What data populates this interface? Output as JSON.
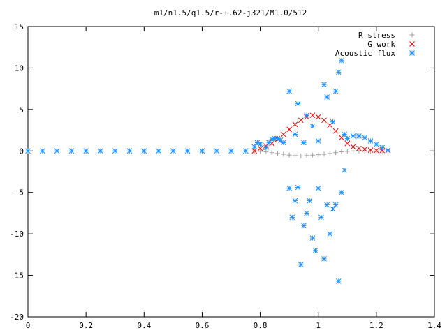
{
  "chart_data": {
    "type": "scatter",
    "title": "m1/n1.5/q1.5/r-+.62-j321/M1.0/512",
    "xlabel": "",
    "ylabel": "",
    "xlim": [
      0,
      1.4
    ],
    "ylim": [
      -20,
      15
    ],
    "x_ticks": [
      "0",
      "0.2",
      "0.4",
      "0.6",
      "0.8",
      "1",
      "1.2",
      "1.4"
    ],
    "y_ticks": [
      "15",
      "10",
      "5",
      "0",
      "-5",
      "-10",
      "-15",
      "-20"
    ],
    "grid": false,
    "legend_position": "top-right",
    "series": [
      {
        "name": "R stress",
        "marker": "plus",
        "color": "#a0a0a0",
        "points": [
          [
            0.0,
            0
          ],
          [
            0.1,
            0
          ],
          [
            0.2,
            0
          ],
          [
            0.3,
            0
          ],
          [
            0.4,
            0
          ],
          [
            0.5,
            0
          ],
          [
            0.6,
            0
          ],
          [
            0.7,
            0
          ],
          [
            0.78,
            0
          ],
          [
            0.8,
            -0.05
          ],
          [
            0.82,
            -0.1
          ],
          [
            0.84,
            -0.2
          ],
          [
            0.86,
            -0.3
          ],
          [
            0.88,
            -0.4
          ],
          [
            0.9,
            -0.5
          ],
          [
            0.92,
            -0.55
          ],
          [
            0.94,
            -0.6
          ],
          [
            0.96,
            -0.55
          ],
          [
            0.98,
            -0.5
          ],
          [
            1.0,
            -0.45
          ],
          [
            1.02,
            -0.4
          ],
          [
            1.04,
            -0.3
          ],
          [
            1.06,
            -0.2
          ],
          [
            1.08,
            -0.1
          ],
          [
            1.1,
            -0.05
          ],
          [
            1.12,
            0
          ],
          [
            1.14,
            0
          ],
          [
            1.16,
            0
          ],
          [
            1.18,
            0
          ],
          [
            1.2,
            0
          ],
          [
            1.22,
            0
          ],
          [
            1.24,
            0
          ]
        ]
      },
      {
        "name": "G work",
        "marker": "cross",
        "color": "#ff0000",
        "points": [
          [
            0.78,
            0
          ],
          [
            0.8,
            0.3
          ],
          [
            0.82,
            0.6
          ],
          [
            0.84,
            0.9
          ],
          [
            0.86,
            1.4
          ],
          [
            0.88,
            2.0
          ],
          [
            0.9,
            2.6
          ],
          [
            0.92,
            3.2
          ],
          [
            0.94,
            3.7
          ],
          [
            0.96,
            4.1
          ],
          [
            0.98,
            4.3
          ],
          [
            1.0,
            4.1
          ],
          [
            1.02,
            3.7
          ],
          [
            1.04,
            3.1
          ],
          [
            1.06,
            2.4
          ],
          [
            1.08,
            1.6
          ],
          [
            1.1,
            0.9
          ],
          [
            1.12,
            0.5
          ],
          [
            1.14,
            0.3
          ],
          [
            1.16,
            0.2
          ],
          [
            1.18,
            0.1
          ],
          [
            1.2,
            0.05
          ],
          [
            1.22,
            0.05
          ],
          [
            1.24,
            0.05
          ]
        ]
      },
      {
        "name": "Acoustic flux",
        "marker": "star",
        "color": "#1e90ff",
        "points": [
          [
            0.0,
            0
          ],
          [
            0.05,
            0
          ],
          [
            0.1,
            0
          ],
          [
            0.15,
            0
          ],
          [
            0.2,
            0
          ],
          [
            0.25,
            0
          ],
          [
            0.3,
            0
          ],
          [
            0.35,
            0
          ],
          [
            0.4,
            0
          ],
          [
            0.45,
            0
          ],
          [
            0.5,
            0
          ],
          [
            0.55,
            0
          ],
          [
            0.6,
            0
          ],
          [
            0.65,
            0
          ],
          [
            0.7,
            0
          ],
          [
            0.75,
            0
          ],
          [
            0.78,
            0.5
          ],
          [
            0.79,
            1.0
          ],
          [
            0.8,
            0.8
          ],
          [
            0.82,
            0.4
          ],
          [
            0.83,
            1.0
          ],
          [
            0.84,
            1.4
          ],
          [
            0.85,
            1.5
          ],
          [
            0.86,
            1.5
          ],
          [
            0.87,
            1.3
          ],
          [
            0.88,
            1.0
          ],
          [
            0.9,
            -4.5
          ],
          [
            0.91,
            -8.0
          ],
          [
            0.92,
            -6.0
          ],
          [
            0.93,
            -4.4
          ],
          [
            0.94,
            -13.7
          ],
          [
            0.95,
            -9.0
          ],
          [
            0.96,
            -7.5
          ],
          [
            0.97,
            -6.0
          ],
          [
            0.98,
            -10.5
          ],
          [
            0.99,
            -12.0
          ],
          [
            1.0,
            -4.5
          ],
          [
            1.01,
            -8.0
          ],
          [
            1.02,
            -13.0
          ],
          [
            1.03,
            -6.5
          ],
          [
            1.04,
            -10.0
          ],
          [
            1.05,
            -7.0
          ],
          [
            1.06,
            -6.5
          ],
          [
            1.07,
            -15.7
          ],
          [
            1.08,
            -5.0
          ],
          [
            1.09,
            -2.3
          ],
          [
            0.9,
            7.2
          ],
          [
            0.92,
            2.0
          ],
          [
            0.93,
            5.7
          ],
          [
            0.95,
            1.0
          ],
          [
            0.96,
            4.3
          ],
          [
            0.98,
            3.0
          ],
          [
            1.0,
            1.2
          ],
          [
            1.02,
            8.0
          ],
          [
            1.03,
            6.5
          ],
          [
            1.05,
            3.5
          ],
          [
            1.06,
            7.2
          ],
          [
            1.07,
            9.5
          ],
          [
            1.08,
            10.9
          ],
          [
            1.09,
            2.0
          ],
          [
            1.1,
            1.5
          ],
          [
            1.12,
            1.8
          ],
          [
            1.14,
            1.8
          ],
          [
            1.16,
            1.6
          ],
          [
            1.18,
            1.2
          ],
          [
            1.2,
            0.8
          ],
          [
            1.22,
            0.4
          ],
          [
            1.24,
            0.1
          ]
        ]
      }
    ]
  }
}
